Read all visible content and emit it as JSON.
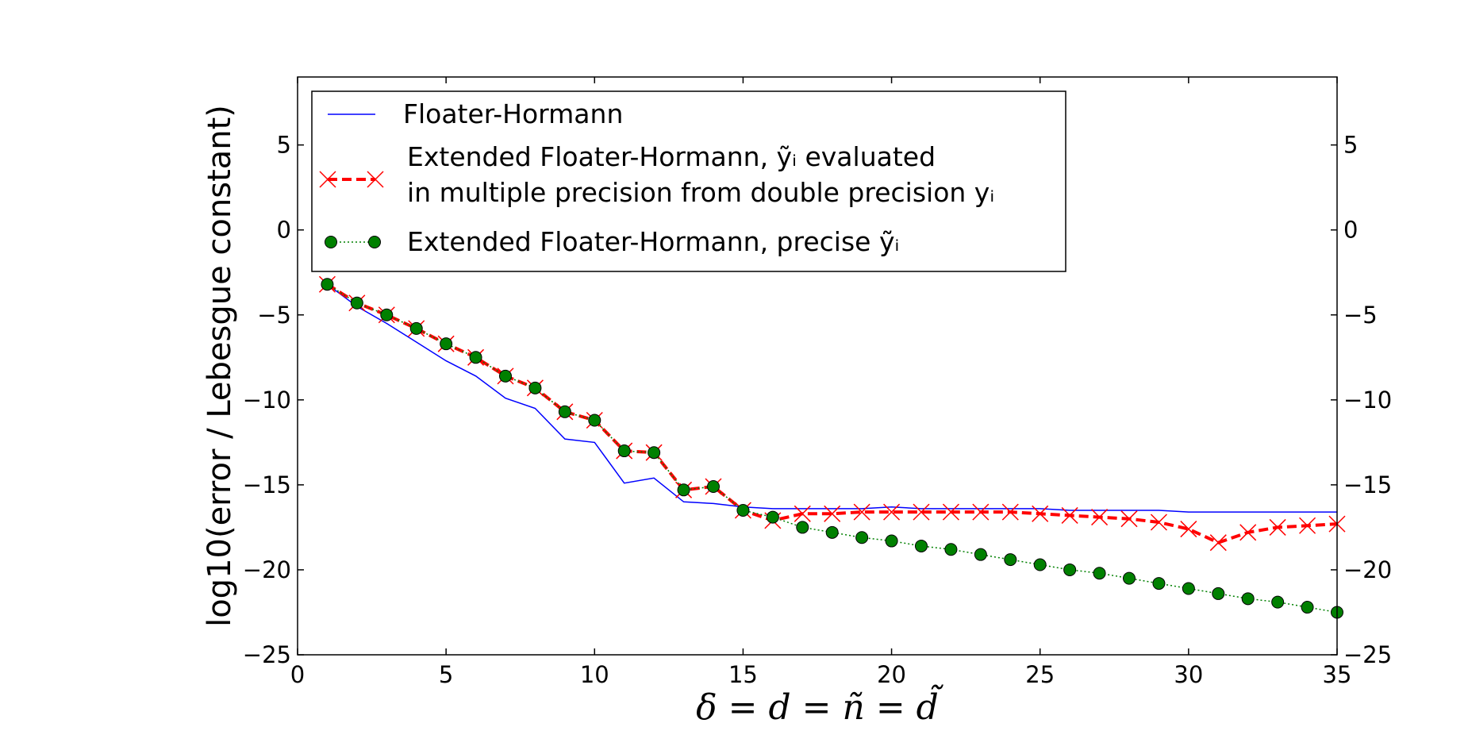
{
  "chart_data": {
    "type": "line",
    "title": "",
    "xlabel": "δ = d = ñ = d̃",
    "ylabel": "log10(error / Lebesgue constant)",
    "xlim": [
      0,
      35
    ],
    "ylim": [
      -25,
      9
    ],
    "xticks": [
      0,
      5,
      10,
      15,
      20,
      25,
      30,
      35
    ],
    "yticks": [
      5,
      0,
      -5,
      -10,
      -15,
      -20,
      -25
    ],
    "xtick_labels": [
      "0",
      "5",
      "10",
      "15",
      "20",
      "25",
      "30",
      "35"
    ],
    "ytick_labels": [
      "5",
      "0",
      "−5",
      "−10",
      "−15",
      "−20",
      "−25"
    ],
    "right_axis_mirrors_left": true,
    "grid": false,
    "legend_position": "top-left",
    "series": [
      {
        "name": "Floater-Hormann",
        "color": "#0000ff",
        "style": "solid",
        "marker": "none",
        "x": [
          1,
          2,
          3,
          4,
          5,
          6,
          7,
          8,
          9,
          10,
          11,
          12,
          13,
          14,
          15,
          16,
          17,
          18,
          19,
          20,
          21,
          22,
          23,
          24,
          25,
          26,
          27,
          28,
          29,
          30,
          31,
          32,
          33,
          34,
          35
        ],
        "y": [
          -3.2,
          -4.5,
          -5.5,
          -6.6,
          -7.7,
          -8.6,
          -9.9,
          -10.5,
          -12.3,
          -12.5,
          -14.9,
          -14.6,
          -16.0,
          -16.1,
          -16.3,
          -16.4,
          -16.4,
          -16.4,
          -16.4,
          -16.3,
          -16.4,
          -16.4,
          -16.4,
          -16.4,
          -16.4,
          -16.5,
          -16.5,
          -16.5,
          -16.5,
          -16.6,
          -16.6,
          -16.6,
          -16.6,
          -16.6,
          -16.6
        ]
      },
      {
        "name": "Extended Floater-Hormann, ỹ_i evaluated in multiple precision from double precision y_i",
        "legend_lines": [
          "Extended Floater-Hormann, ỹᵢ evaluated",
          "in multiple precision from double precision yᵢ"
        ],
        "color": "#ff0000",
        "style": "dashed",
        "marker": "x",
        "x": [
          1,
          2,
          3,
          4,
          5,
          6,
          7,
          8,
          9,
          10,
          11,
          12,
          13,
          14,
          15,
          16,
          17,
          18,
          19,
          20,
          21,
          22,
          23,
          24,
          25,
          26,
          27,
          28,
          29,
          30,
          31,
          32,
          33,
          34,
          35
        ],
        "y": [
          -3.2,
          -4.3,
          -5.0,
          -5.8,
          -6.7,
          -7.5,
          -8.6,
          -9.3,
          -10.7,
          -11.2,
          -13.0,
          -13.1,
          -15.3,
          -15.1,
          -16.5,
          -17.1,
          -16.7,
          -16.7,
          -16.6,
          -16.6,
          -16.6,
          -16.6,
          -16.6,
          -16.6,
          -16.7,
          -16.8,
          -16.9,
          -17.0,
          -17.2,
          -17.6,
          -18.4,
          -17.8,
          -17.5,
          -17.4,
          -17.3
        ]
      },
      {
        "name": "Extended Floater-Hormann, precise ỹ_i",
        "legend_lines": [
          "Extended Floater-Hormann, precise ỹᵢ"
        ],
        "color": "#008000",
        "style": "dotted",
        "marker": "o",
        "x": [
          1,
          2,
          3,
          4,
          5,
          6,
          7,
          8,
          9,
          10,
          11,
          12,
          13,
          14,
          15,
          16,
          17,
          18,
          19,
          20,
          21,
          22,
          23,
          24,
          25,
          26,
          27,
          28,
          29,
          30,
          31,
          32,
          33,
          34,
          35
        ],
        "y": [
          -3.2,
          -4.3,
          -5.0,
          -5.8,
          -6.7,
          -7.5,
          -8.6,
          -9.3,
          -10.7,
          -11.2,
          -13.0,
          -13.1,
          -15.3,
          -15.1,
          -16.5,
          -16.9,
          -17.5,
          -17.8,
          -18.1,
          -18.3,
          -18.6,
          -18.8,
          -19.1,
          -19.4,
          -19.7,
          -20.0,
          -20.2,
          -20.5,
          -20.8,
          -21.1,
          -21.4,
          -21.7,
          -21.9,
          -22.2,
          -22.5
        ]
      }
    ]
  }
}
